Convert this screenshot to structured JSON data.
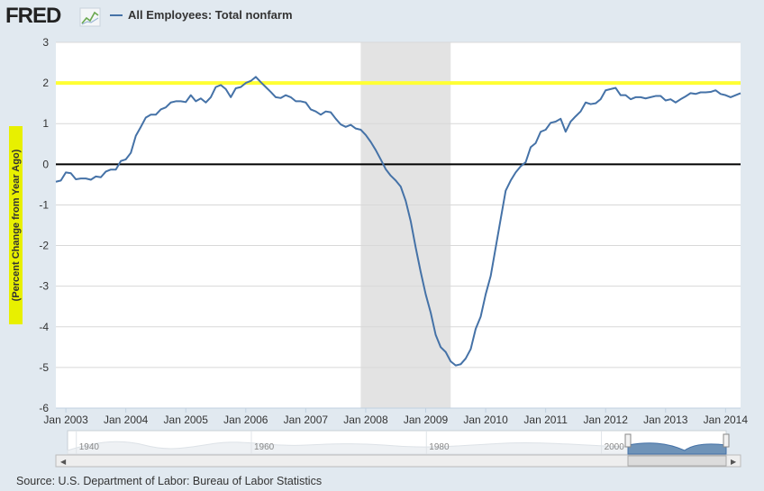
{
  "logo": "FRED",
  "chart_data": {
    "type": "line",
    "ylabel": "(Percent Change from Year Ago)",
    "source": "Source: U.S. Department of Labor: Bureau of Labor Statistics",
    "x": [
      "2002-11",
      "2002-12",
      "2003-01",
      "2003-02",
      "2003-03",
      "2003-04",
      "2003-05",
      "2003-06",
      "2003-07",
      "2003-08",
      "2003-09",
      "2003-10",
      "2003-11",
      "2003-12",
      "2004-01",
      "2004-02",
      "2004-03",
      "2004-04",
      "2004-05",
      "2004-06",
      "2004-07",
      "2004-08",
      "2004-09",
      "2004-10",
      "2004-11",
      "2004-12",
      "2005-01",
      "2005-02",
      "2005-03",
      "2005-04",
      "2005-05",
      "2005-06",
      "2005-07",
      "2005-08",
      "2005-09",
      "2005-10",
      "2005-11",
      "2005-12",
      "2006-01",
      "2006-02",
      "2006-03",
      "2006-04",
      "2006-05",
      "2006-06",
      "2006-07",
      "2006-08",
      "2006-09",
      "2006-10",
      "2006-11",
      "2006-12",
      "2007-01",
      "2007-02",
      "2007-03",
      "2007-04",
      "2007-05",
      "2007-06",
      "2007-07",
      "2007-08",
      "2007-09",
      "2007-10",
      "2007-11",
      "2007-12",
      "2008-01",
      "2008-02",
      "2008-03",
      "2008-04",
      "2008-05",
      "2008-06",
      "2008-07",
      "2008-08",
      "2008-09",
      "2008-10",
      "2008-11",
      "2008-12",
      "2009-01",
      "2009-02",
      "2009-03",
      "2009-04",
      "2009-05",
      "2009-06",
      "2009-07",
      "2009-08",
      "2009-09",
      "2009-10",
      "2009-11",
      "2009-12",
      "2010-01",
      "2010-02",
      "2010-03",
      "2010-04",
      "2010-05",
      "2010-06",
      "2010-07",
      "2010-08",
      "2010-09",
      "2010-10",
      "2010-11",
      "2010-12",
      "2011-01",
      "2011-02",
      "2011-03",
      "2011-04",
      "2011-05",
      "2011-06",
      "2011-07",
      "2011-08",
      "2011-09",
      "2011-10",
      "2011-11",
      "2011-12",
      "2012-01",
      "2012-02",
      "2012-03",
      "2012-04",
      "2012-05",
      "2012-06",
      "2012-07",
      "2012-08",
      "2012-09",
      "2012-10",
      "2012-11",
      "2012-12",
      "2013-01",
      "2013-02",
      "2013-03",
      "2013-04",
      "2013-05",
      "2013-06",
      "2013-07",
      "2013-08",
      "2013-09",
      "2013-10",
      "2013-11",
      "2013-12",
      "2014-01",
      "2014-02",
      "2014-03",
      "2014-04"
    ],
    "series": [
      {
        "name": "All Employees: Total nonfarm",
        "color": "#4572a7",
        "values": [
          -0.43,
          -0.4,
          -0.2,
          -0.22,
          -0.37,
          -0.35,
          -0.35,
          -0.38,
          -0.3,
          -0.32,
          -0.18,
          -0.13,
          -0.13,
          0.08,
          0.12,
          0.28,
          0.7,
          0.92,
          1.15,
          1.22,
          1.22,
          1.35,
          1.4,
          1.52,
          1.55,
          1.55,
          1.53,
          1.7,
          1.55,
          1.62,
          1.52,
          1.65,
          1.9,
          1.95,
          1.85,
          1.65,
          1.87,
          1.9,
          2.0,
          2.05,
          2.15,
          2.02,
          1.9,
          1.78,
          1.65,
          1.63,
          1.7,
          1.65,
          1.55,
          1.55,
          1.52,
          1.35,
          1.3,
          1.22,
          1.3,
          1.28,
          1.12,
          0.98,
          0.92,
          0.97,
          0.88,
          0.85,
          0.72,
          0.55,
          0.35,
          0.12,
          -0.12,
          -0.28,
          -0.4,
          -0.55,
          -0.9,
          -1.4,
          -2.05,
          -2.65,
          -3.2,
          -3.65,
          -4.2,
          -4.5,
          -4.62,
          -4.85,
          -4.95,
          -4.92,
          -4.78,
          -4.55,
          -4.05,
          -3.75,
          -3.2,
          -2.75,
          -2.05,
          -1.35,
          -0.65,
          -0.4,
          -0.2,
          -0.05,
          0.05,
          0.42,
          0.52,
          0.8,
          0.85,
          1.02,
          1.05,
          1.12,
          0.8,
          1.05,
          1.18,
          1.3,
          1.52,
          1.48,
          1.5,
          1.6,
          1.82,
          1.85,
          1.88,
          1.7,
          1.7,
          1.6,
          1.65,
          1.65,
          1.62,
          1.65,
          1.68,
          1.68,
          1.57,
          1.6,
          1.52,
          1.6,
          1.67,
          1.75,
          1.73,
          1.77,
          1.77,
          1.78,
          1.82,
          1.73,
          1.7,
          1.65,
          1.7,
          1.75
        ]
      }
    ],
    "xlim": [
      "2002-11",
      "2014-04"
    ],
    "xticks": [
      {
        "value": "2003-01",
        "label": "Jan 2003"
      },
      {
        "value": "2004-01",
        "label": "Jan 2004"
      },
      {
        "value": "2005-01",
        "label": "Jan 2005"
      },
      {
        "value": "2006-01",
        "label": "Jan 2006"
      },
      {
        "value": "2007-01",
        "label": "Jan 2007"
      },
      {
        "value": "2008-01",
        "label": "Jan 2008"
      },
      {
        "value": "2009-01",
        "label": "Jan 2009"
      },
      {
        "value": "2010-01",
        "label": "Jan 2010"
      },
      {
        "value": "2011-01",
        "label": "Jan 2011"
      },
      {
        "value": "2012-01",
        "label": "Jan 2012"
      },
      {
        "value": "2013-01",
        "label": "Jan 2013"
      },
      {
        "value": "2014-01",
        "label": "Jan 2014"
      }
    ],
    "ylim": [
      -6,
      3
    ],
    "yticks": [
      -6,
      -5,
      -4,
      -3,
      -2,
      -1,
      0,
      1,
      2,
      3
    ],
    "grid": true,
    "baseline": 0,
    "reference_line": {
      "value": 2,
      "color": "#ffff33"
    },
    "shaded_ranges": [
      [
        "2007-12",
        "2009-06"
      ]
    ],
    "shade_color": "#e3e3e3",
    "navigator": {
      "xlim": [
        1939,
        2014.25
      ],
      "xticks": [
        1940,
        1960,
        1980,
        2000
      ]
    }
  }
}
